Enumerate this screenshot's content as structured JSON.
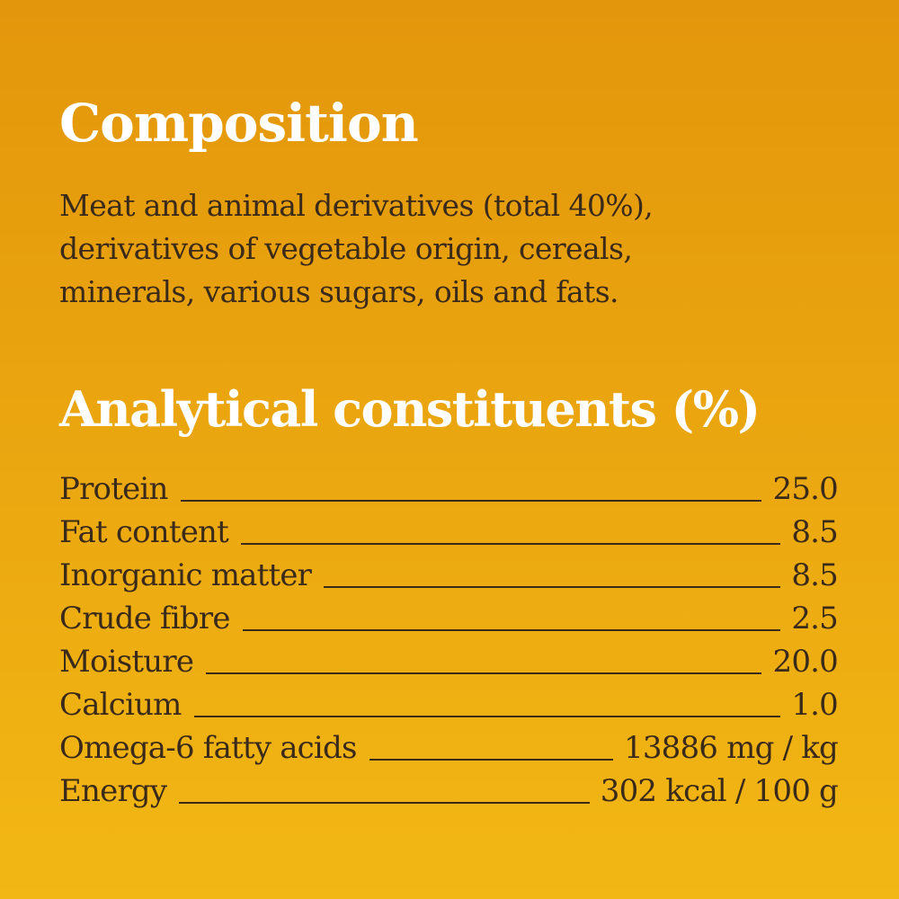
{
  "composition": {
    "title": "Composition",
    "lines": [
      "Meat and animal derivatives (total 40%),",
      "derivatives of vegetable origin, cereals,",
      "minerals, various sugars, oils and fats."
    ]
  },
  "analytical": {
    "title": "Analytical constituents (%)",
    "rows": [
      {
        "label": "Protein",
        "value": "25.0"
      },
      {
        "label": "Fat content",
        "value": "8.5"
      },
      {
        "label": "Inorganic matter",
        "value": "8.5"
      },
      {
        "label": "Crude fibre",
        "value": "2.5"
      },
      {
        "label": "Moisture",
        "value": "20.0"
      },
      {
        "label": "Calcium",
        "value": "1.0"
      },
      {
        "label": "Omega-6 fatty acids",
        "value": "13886 mg / kg"
      },
      {
        "label": "Energy",
        "value": "302 kcal / 100 g"
      }
    ]
  },
  "colors": {
    "background_top": "#E3960B",
    "background_bottom": "#F2B714",
    "heading": "#FFFFFF",
    "body_text": "#3A2A1A"
  }
}
